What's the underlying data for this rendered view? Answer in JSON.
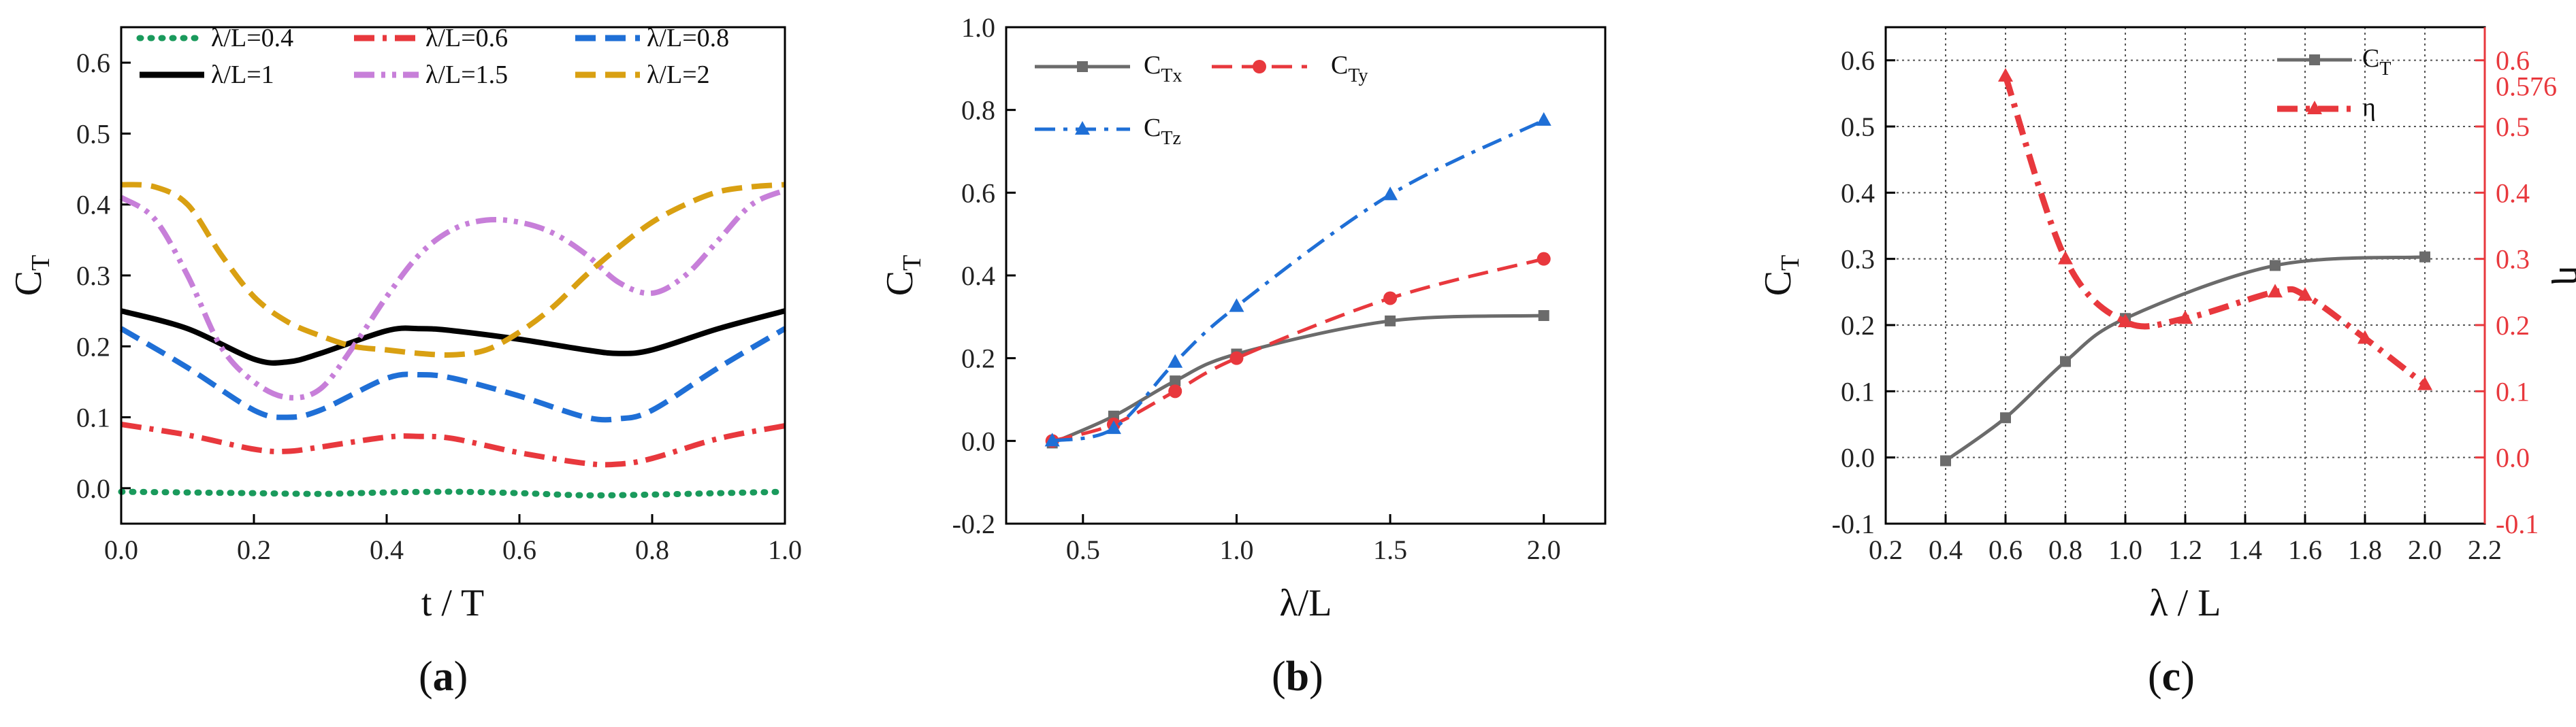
{
  "chart_data": [
    {
      "type": "line",
      "panel": "a",
      "panel_letter": "a",
      "xlabel": "t  / T",
      "ylabel": "C",
      "ylabel_sub": "T",
      "xlim": [
        0,
        1
      ],
      "ylim": [
        -0.05,
        0.65
      ],
      "xticks": [
        0,
        0.2,
        0.4,
        0.6,
        0.8,
        1
      ],
      "xtick_labels": [
        "0.0",
        "0.2",
        "0.4",
        "0.6",
        "0.8",
        "1.0"
      ],
      "yticks": [
        0,
        0.1,
        0.2,
        0.3,
        0.4,
        0.5,
        0.6
      ],
      "ytick_labels": [
        "0.0",
        "0.1",
        "0.2",
        "0.3",
        "0.4",
        "0.5",
        "0.6"
      ],
      "series": [
        {
          "name": "λ/L=0.4",
          "color": "#1a9a5c",
          "dash": "dot",
          "x": [
            0,
            0.1,
            0.2,
            0.3,
            0.4,
            0.5,
            0.6,
            0.7,
            0.8,
            0.9,
            1.0
          ],
          "y": [
            -0.005,
            -0.006,
            -0.007,
            -0.008,
            -0.006,
            -0.005,
            -0.007,
            -0.01,
            -0.009,
            -0.007,
            -0.005
          ]
        },
        {
          "name": "λ/L=0.6",
          "color": "#e8383d",
          "dash": "dashdot",
          "x": [
            0,
            0.1,
            0.2,
            0.25,
            0.3,
            0.4,
            0.45,
            0.5,
            0.6,
            0.7,
            0.75,
            0.8,
            0.9,
            1.0
          ],
          "y": [
            0.09,
            0.075,
            0.055,
            0.052,
            0.058,
            0.072,
            0.073,
            0.07,
            0.05,
            0.035,
            0.034,
            0.042,
            0.07,
            0.088
          ]
        },
        {
          "name": "λ/L=0.8",
          "color": "#1f6fd6",
          "dash": "dash",
          "x": [
            0,
            0.1,
            0.2,
            0.25,
            0.3,
            0.4,
            0.45,
            0.5,
            0.6,
            0.7,
            0.75,
            0.8,
            0.9,
            1.0
          ],
          "y": [
            0.225,
            0.17,
            0.11,
            0.1,
            0.11,
            0.155,
            0.16,
            0.155,
            0.13,
            0.1,
            0.098,
            0.11,
            0.17,
            0.225
          ]
        },
        {
          "name": "λ/L=1",
          "color": "#000000",
          "dash": "solid",
          "x": [
            0,
            0.1,
            0.2,
            0.25,
            0.3,
            0.4,
            0.45,
            0.5,
            0.6,
            0.7,
            0.75,
            0.8,
            0.9,
            1.0
          ],
          "y": [
            0.25,
            0.225,
            0.182,
            0.178,
            0.19,
            0.222,
            0.225,
            0.222,
            0.21,
            0.195,
            0.19,
            0.195,
            0.225,
            0.25
          ]
        },
        {
          "name": "λ/L=1.5",
          "color": "#c77fd9",
          "dash": "dashdotdot",
          "x": [
            0,
            0.05,
            0.1,
            0.15,
            0.2,
            0.25,
            0.3,
            0.35,
            0.4,
            0.45,
            0.5,
            0.55,
            0.6,
            0.65,
            0.7,
            0.75,
            0.8,
            0.85,
            0.9,
            0.95,
            1.0
          ],
          "y": [
            0.41,
            0.38,
            0.3,
            0.2,
            0.15,
            0.128,
            0.14,
            0.2,
            0.27,
            0.33,
            0.365,
            0.378,
            0.375,
            0.36,
            0.33,
            0.29,
            0.275,
            0.3,
            0.35,
            0.4,
            0.42
          ]
        },
        {
          "name": "λ/L=2",
          "color": "#d9a012",
          "dash": "dash",
          "x": [
            0,
            0.05,
            0.1,
            0.15,
            0.2,
            0.25,
            0.3,
            0.35,
            0.4,
            0.45,
            0.5,
            0.55,
            0.6,
            0.65,
            0.7,
            0.75,
            0.8,
            0.85,
            0.9,
            0.95,
            1.0
          ],
          "y": [
            0.428,
            0.425,
            0.4,
            0.33,
            0.27,
            0.235,
            0.215,
            0.2,
            0.195,
            0.19,
            0.188,
            0.195,
            0.22,
            0.255,
            0.3,
            0.34,
            0.375,
            0.4,
            0.418,
            0.425,
            0.428
          ]
        }
      ],
      "legend": [
        "λ/L=0.4",
        "λ/L=0.6",
        "λ/L=0.8",
        "λ/L=1",
        "λ/L=1.5",
        "λ/L=2"
      ]
    },
    {
      "type": "line",
      "panel": "b",
      "panel_letter": "b",
      "xlabel": "λ/L",
      "ylabel": "C",
      "ylabel_sub": "T",
      "xlim": [
        0.25,
        2.2
      ],
      "ylim": [
        -0.2,
        1.0
      ],
      "xticks": [
        0.5,
        1.0,
        1.5,
        2.0
      ],
      "xtick_labels": [
        "0.5",
        "1.0",
        "1.5",
        "2.0"
      ],
      "yticks": [
        -0.2,
        0,
        0.2,
        0.4,
        0.6,
        0.8,
        1.0
      ],
      "ytick_labels": [
        "-0.2",
        "0.0",
        "0.2",
        "0.4",
        "0.6",
        "0.8",
        "1.0"
      ],
      "series": [
        {
          "name": "C",
          "sub": "Tx",
          "color": "#6b6b6b",
          "dash": "solid",
          "marker": "square",
          "x": [
            0.4,
            0.6,
            0.8,
            1.0,
            1.5,
            2.0
          ],
          "y": [
            -0.005,
            0.06,
            0.145,
            0.21,
            0.29,
            0.303
          ]
        },
        {
          "name": "C",
          "sub": "Ty",
          "color": "#e8383d",
          "dash": "dash",
          "marker": "circle",
          "x": [
            0.4,
            0.6,
            0.8,
            1.0,
            1.5,
            2.0
          ],
          "y": [
            0.0,
            0.04,
            0.12,
            0.2,
            0.345,
            0.44
          ]
        },
        {
          "name": "C",
          "sub": "Tz",
          "color": "#1f6fd6",
          "dash": "dashdot",
          "marker": "triangle",
          "x": [
            0.4,
            0.6,
            0.8,
            1.0,
            1.5,
            2.0
          ],
          "y": [
            0.0,
            0.03,
            0.19,
            0.325,
            0.595,
            0.775
          ]
        }
      ]
    },
    {
      "type": "line",
      "panel": "c",
      "panel_letter": "c",
      "xlabel": "λ / L",
      "ylabel": "C",
      "ylabel_sub": "T",
      "y2label": "η",
      "xlim": [
        0.2,
        2.2
      ],
      "ylim": [
        -0.1,
        0.65
      ],
      "y2lim": [
        -0.1,
        0.65
      ],
      "grid": true,
      "xticks": [
        0.2,
        0.4,
        0.6,
        0.8,
        1.0,
        1.2,
        1.4,
        1.6,
        1.8,
        2.0,
        2.2
      ],
      "xtick_labels": [
        "0.2",
        "0.4",
        "0.6",
        "0.8",
        "1.0",
        "1.2",
        "1.4",
        "1.6",
        "1.8",
        "2.0",
        "2.2"
      ],
      "yticks": [
        -0.1,
        0,
        0.1,
        0.2,
        0.3,
        0.4,
        0.5,
        0.6
      ],
      "ytick_labels": [
        "-0.1",
        "0.0",
        "0.1",
        "0.2",
        "0.3",
        "0.4",
        "0.5",
        "0.6"
      ],
      "y2tick_labels": [
        "-0.1",
        "0.0",
        "0.1",
        "0.2",
        "0.3",
        "0.4",
        "0.5",
        "0.6"
      ],
      "annotation": "0.576",
      "series": [
        {
          "name": "C",
          "sub": "T",
          "color": "#6b6b6b",
          "dash": "solid",
          "marker": "square",
          "axis": "left",
          "x": [
            0.4,
            0.6,
            0.8,
            1.0,
            1.5,
            2.0
          ],
          "y": [
            -0.005,
            0.06,
            0.145,
            0.21,
            0.29,
            0.303
          ]
        },
        {
          "name": "η",
          "sub": "",
          "color": "#e8383d",
          "dash": "dashdot",
          "marker": "triangle",
          "axis": "right",
          "x": [
            0.6,
            0.8,
            1.0,
            1.2,
            1.5,
            1.6,
            1.8,
            2.0
          ],
          "y": [
            0.576,
            0.3,
            0.205,
            0.21,
            0.25,
            0.245,
            0.18,
            0.11
          ]
        }
      ]
    }
  ]
}
